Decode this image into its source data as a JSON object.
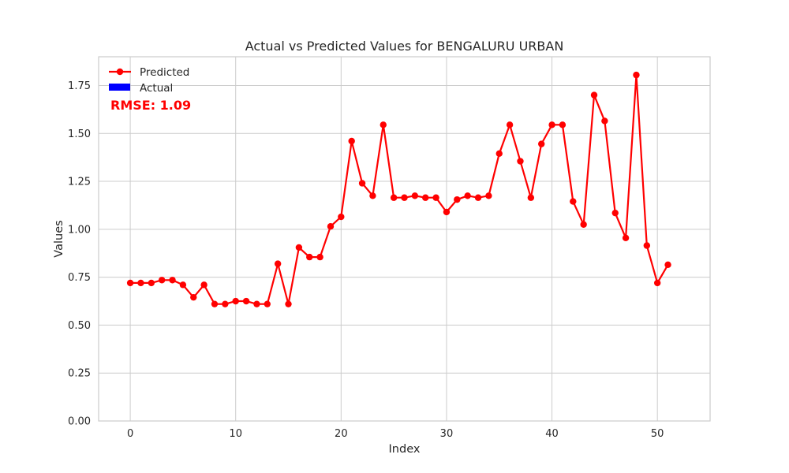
{
  "chart_data": {
    "type": "line",
    "title": "Actual vs Predicted Values for BENGALURU URBAN",
    "xlabel": "Index",
    "ylabel": "Values",
    "xlim": [
      -3,
      55
    ],
    "ylim": [
      0,
      1.9
    ],
    "xticks": [
      0,
      10,
      20,
      30,
      40,
      50
    ],
    "xtick_labels": [
      "0",
      "10",
      "20",
      "30",
      "40",
      "50"
    ],
    "yticks": [
      0,
      0.25,
      0.5,
      0.75,
      1.0,
      1.25,
      1.5,
      1.75
    ],
    "ytick_labels": [
      "0.00",
      "0.25",
      "0.50",
      "0.75",
      "1.00",
      "1.25",
      "1.50",
      "1.75"
    ],
    "grid": true,
    "legend_position": "top-left",
    "series": [
      {
        "name": "Predicted",
        "color": "#ff0000",
        "marker": "circle",
        "x": [
          0,
          1,
          2,
          3,
          4,
          5,
          6,
          7,
          8,
          9,
          10,
          11,
          12,
          13,
          14,
          15,
          16,
          17,
          18,
          19,
          20,
          21,
          22,
          23,
          24,
          25,
          26,
          27,
          28,
          29,
          30,
          31,
          32,
          33,
          34,
          35,
          36,
          37,
          38,
          39,
          40,
          41,
          42,
          43,
          44,
          45,
          46,
          47,
          48,
          49,
          50,
          51
        ],
        "values": [
          0.72,
          0.72,
          0.72,
          0.735,
          0.735,
          0.71,
          0.645,
          0.71,
          0.61,
          0.61,
          0.625,
          0.625,
          0.61,
          0.61,
          0.82,
          0.61,
          0.905,
          0.855,
          0.855,
          1.015,
          1.065,
          1.46,
          1.24,
          1.175,
          1.545,
          1.165,
          1.165,
          1.175,
          1.165,
          1.165,
          1.09,
          1.155,
          1.175,
          1.165,
          1.175,
          1.395,
          1.545,
          1.355,
          1.165,
          1.445,
          1.545,
          1.545,
          1.145,
          1.025,
          1.7,
          1.565,
          1.085,
          0.955,
          1.805,
          0.915,
          0.72,
          0.815
        ]
      },
      {
        "name": "Actual",
        "color": "#0000ff",
        "values": []
      }
    ],
    "annotation": {
      "text": "RMSE: 1.09",
      "color": "#ff0000"
    }
  }
}
